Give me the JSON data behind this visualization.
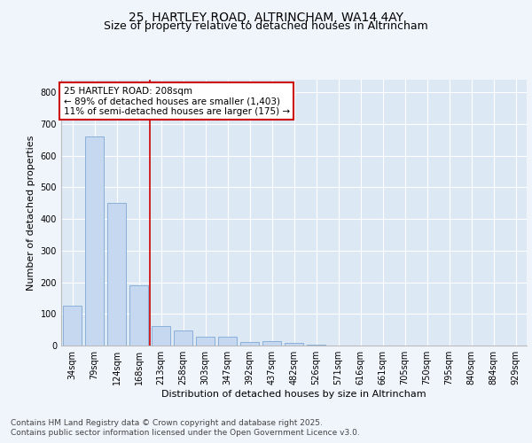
{
  "title_line1": "25, HARTLEY ROAD, ALTRINCHAM, WA14 4AY",
  "title_line2": "Size of property relative to detached houses in Altrincham",
  "xlabel": "Distribution of detached houses by size in Altrincham",
  "ylabel": "Number of detached properties",
  "categories": [
    "34sqm",
    "79sqm",
    "124sqm",
    "168sqm",
    "213sqm",
    "258sqm",
    "303sqm",
    "347sqm",
    "392sqm",
    "437sqm",
    "482sqm",
    "526sqm",
    "571sqm",
    "616sqm",
    "661sqm",
    "705sqm",
    "750sqm",
    "795sqm",
    "840sqm",
    "884sqm",
    "929sqm"
  ],
  "values": [
    127,
    660,
    450,
    190,
    63,
    48,
    28,
    27,
    12,
    14,
    9,
    2,
    0,
    0,
    0,
    0,
    0,
    0,
    0,
    0,
    0
  ],
  "bar_color": "#c5d8f0",
  "bar_edge_color": "#8ab0d8",
  "background_color": "#f0f4fb",
  "plot_bg_color": "#dde8f5",
  "grid_color": "#ffffff",
  "vline_color": "#cc0000",
  "vline_x_idx": 4,
  "annotation_text_line1": "25 HARTLEY ROAD: 208sqm",
  "annotation_text_line2": "← 89% of detached houses are smaller (1,403)",
  "annotation_text_line3": "11% of semi-detached houses are larger (175) →",
  "ylim_max": 840,
  "yticks": [
    0,
    100,
    200,
    300,
    400,
    500,
    600,
    700,
    800
  ],
  "footer_line1": "Contains HM Land Registry data © Crown copyright and database right 2025.",
  "footer_line2": "Contains public sector information licensed under the Open Government Licence v3.0.",
  "title_fontsize": 10,
  "subtitle_fontsize": 9,
  "axis_label_fontsize": 8,
  "tick_fontsize": 7,
  "annotation_fontsize": 7.5,
  "footer_fontsize": 6.5
}
